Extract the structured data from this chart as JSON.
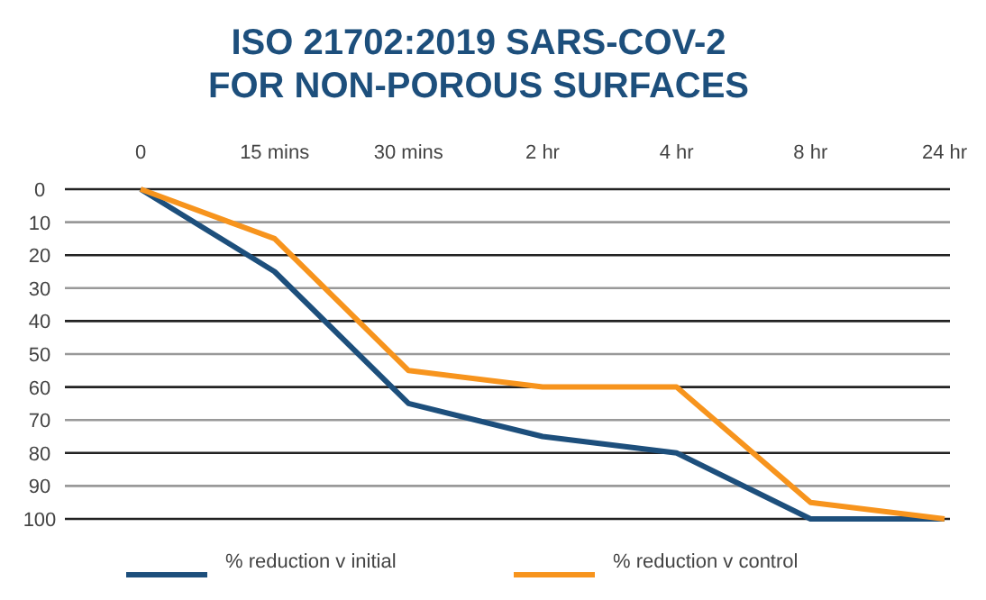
{
  "chart_data": {
    "type": "line",
    "title": "ISO 21702:2019 SARS-COV-2 FOR NON-POROUS SURFACES",
    "categories": [
      "0",
      "15 mins",
      "30 mins",
      "2 hr",
      "4 hr",
      "8 hr",
      "24 hr"
    ],
    "series": [
      {
        "name": "% reduction v initial",
        "color": "#1d4f7c",
        "values": [
          0,
          25,
          65,
          75,
          80,
          100,
          100
        ]
      },
      {
        "name": "% reduction v control",
        "color": "#f7941d",
        "values": [
          0,
          15,
          55,
          60,
          60,
          95,
          100
        ]
      }
    ],
    "ylim": [
      100,
      0
    ],
    "yticks": [
      0,
      10,
      20,
      30,
      40,
      50,
      60,
      70,
      80,
      90,
      100
    ],
    "grid": "y",
    "legend": "bottom",
    "marker": "none",
    "line_style": "solid"
  }
}
